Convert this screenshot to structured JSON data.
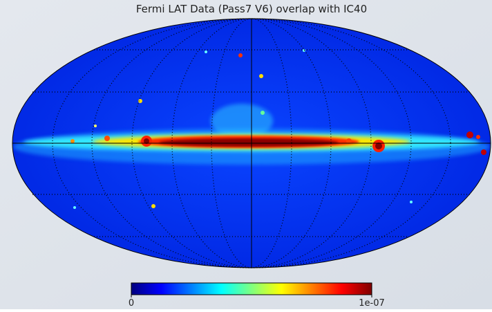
{
  "title": "Fermi LAT Data (Pass7 V6) overlap with IC40",
  "colorbar": {
    "lim": [
      0,
      1e-07
    ],
    "ticks": [
      0,
      {
        "value": 1e-07,
        "label": "1e-07"
      }
    ],
    "colors": [
      "#00007f",
      "#0000ff",
      "#007fff",
      "#00ffff",
      "#7fff7f",
      "#ffff00",
      "#ff7f00",
      "#ff0000",
      "#7f0000"
    ]
  }
}
